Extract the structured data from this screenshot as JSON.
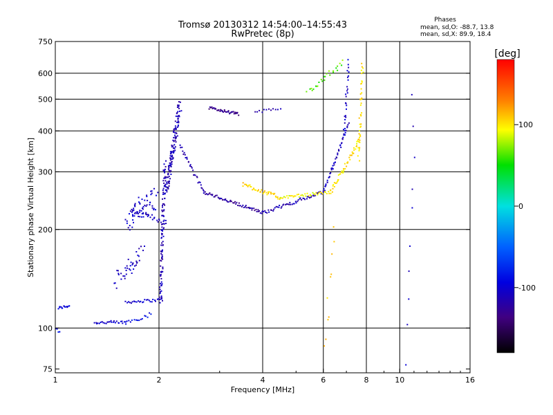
{
  "chart_data": {
    "type": "scatter",
    "title": "Tromsø 20130312 14:54:00–14:55:43",
    "subtitle": "RwPretec (8p)",
    "xlabel": "Frequency [MHz]",
    "ylabel": "Stationary phase Virtual Height [km]",
    "xscale": "log",
    "yscale": "log",
    "xlim": [
      1,
      16
    ],
    "ylim": [
      73,
      750
    ],
    "x_ticks": [
      1,
      2,
      4,
      6,
      8,
      10,
      16
    ],
    "y_ticks": [
      75,
      100,
      200,
      300,
      400,
      500,
      600,
      750
    ],
    "x_gridlines": [
      2,
      4,
      6,
      8,
      10
    ],
    "y_gridlines": [
      100,
      200,
      300,
      400,
      500,
      600
    ],
    "phases_box": {
      "title": "Phases",
      "line1": "mean, sd,O: -88.7, 13.8",
      "line2": "mean, sd,X:  89.9, 18.4"
    },
    "colorbar": {
      "label": "[deg]",
      "range": [
        -180,
        180
      ],
      "ticks": [
        100,
        0,
        -100
      ],
      "colors": [
        "#ff0000",
        "#ff8000",
        "#ffff00",
        "#00e000",
        "#00e0e0",
        "#0060ff",
        "#0000e0",
        "#400080",
        "#000000"
      ]
    },
    "traces": [
      {
        "name": "low-o-trace",
        "x": [
          1.02,
          1.1
        ],
        "y": [
          115,
          117
        ],
        "n": 14,
        "phase": -95,
        "jit": 0.01
      },
      {
        "name": "low-start",
        "x": [
          1.0,
          1.03
        ],
        "y": [
          100,
          97
        ],
        "n": 4,
        "phase": -80,
        "jit": 0.01
      },
      {
        "name": "e-trace-low",
        "x": [
          1.3,
          1.6
        ],
        "y": [
          104,
          104
        ],
        "n": 26,
        "phase": -100,
        "jit": 0.012
      },
      {
        "name": "e-trace-rise",
        "x": [
          1.6,
          1.9
        ],
        "y": [
          104,
          110
        ],
        "n": 16,
        "phase": -90,
        "jit": 0.015
      },
      {
        "name": "e-upper",
        "x": [
          1.6,
          2.05
        ],
        "y": [
          120,
          122
        ],
        "n": 28,
        "phase": -100,
        "jit": 0.01
      },
      {
        "name": "es-blobs-a",
        "x": [
          1.5,
          1.8
        ],
        "y": [
          140,
          170
        ],
        "n": 40,
        "phase": -105,
        "jit": 0.07
      },
      {
        "name": "es-blobs-b",
        "x": [
          1.62,
          1.95
        ],
        "y": [
          215,
          250
        ],
        "n": 60,
        "phase": -100,
        "jit": 0.08
      },
      {
        "name": "f1-cusp",
        "x": [
          1.65,
          2.1
        ],
        "y": [
          230,
          210
        ],
        "n": 30,
        "phase": -110,
        "jit": 0.02
      },
      {
        "name": "vertical-cluster-a",
        "x": [
          2.02,
          2.08
        ],
        "y": [
          120,
          320
        ],
        "n": 110,
        "phase": -110,
        "jit": 0.03
      },
      {
        "name": "vertical-cluster-b",
        "x": [
          2.1,
          2.3
        ],
        "y": [
          260,
          480
        ],
        "n": 130,
        "phase": -110,
        "jit": 0.04
      },
      {
        "name": "f2-o-curve-a",
        "x": [
          2.3,
          2.7
        ],
        "y": [
          360,
          260
        ],
        "n": 30,
        "phase": -115,
        "jit": 0.015
      },
      {
        "name": "f2-o-curve-b",
        "x": [
          2.7,
          4.0
        ],
        "y": [
          260,
          225
        ],
        "n": 60,
        "phase": -120,
        "jit": 0.01
      },
      {
        "name": "f2-o-curve-c",
        "x": [
          4.0,
          6.0
        ],
        "y": [
          225,
          260
        ],
        "n": 55,
        "phase": -110,
        "jit": 0.012
      },
      {
        "name": "f2-o-curve-d",
        "x": [
          6.0,
          7.1
        ],
        "y": [
          260,
          420
        ],
        "n": 50,
        "phase": -105,
        "jit": 0.015
      },
      {
        "name": "f2-x-curve-a",
        "x": [
          3.5,
          4.5
        ],
        "y": [
          275,
          250
        ],
        "n": 40,
        "phase": 105,
        "jit": 0.015
      },
      {
        "name": "f2-x-curve-b",
        "x": [
          4.5,
          6.3
        ],
        "y": [
          250,
          260
        ],
        "n": 40,
        "phase": 90,
        "jit": 0.01
      },
      {
        "name": "f2-x-curve-c",
        "x": [
          6.3,
          7.7
        ],
        "y": [
          260,
          380
        ],
        "n": 50,
        "phase": 100,
        "jit": 0.015
      },
      {
        "name": "upper-layer-a",
        "x": [
          2.8,
          3.4
        ],
        "y": [
          470,
          450
        ],
        "n": 40,
        "phase": -130,
        "jit": 0.01
      },
      {
        "name": "upper-layer-b",
        "x": [
          3.8,
          4.5
        ],
        "y": [
          455,
          470
        ],
        "n": 12,
        "phase": -110,
        "jit": 0.01
      },
      {
        "name": "upper-layer-c",
        "x": [
          5.4,
          6.8
        ],
        "y": [
          520,
          640
        ],
        "n": 25,
        "phase": 60,
        "jit": 0.03
      },
      {
        "name": "x-cusp-vertical",
        "x": [
          7.6,
          7.8
        ],
        "y": [
          330,
          640
        ],
        "n": 40,
        "phase": 100,
        "jit": 0.025
      },
      {
        "name": "o-cusp-vertical",
        "x": [
          6.9,
          7.1
        ],
        "y": [
          400,
          650
        ],
        "n": 25,
        "phase": -100,
        "jit": 0.02
      },
      {
        "name": "scatter-f6",
        "x": [
          6.1,
          6.4
        ],
        "y": [
          85,
          200
        ],
        "n": 10,
        "phase": 110,
        "jit": 0.05
      },
      {
        "name": "scatter-right",
        "x": [
          10.5,
          11.0
        ],
        "y": [
          80,
          520
        ],
        "n": 10,
        "phase": -100,
        "jit": 0.05
      }
    ]
  }
}
